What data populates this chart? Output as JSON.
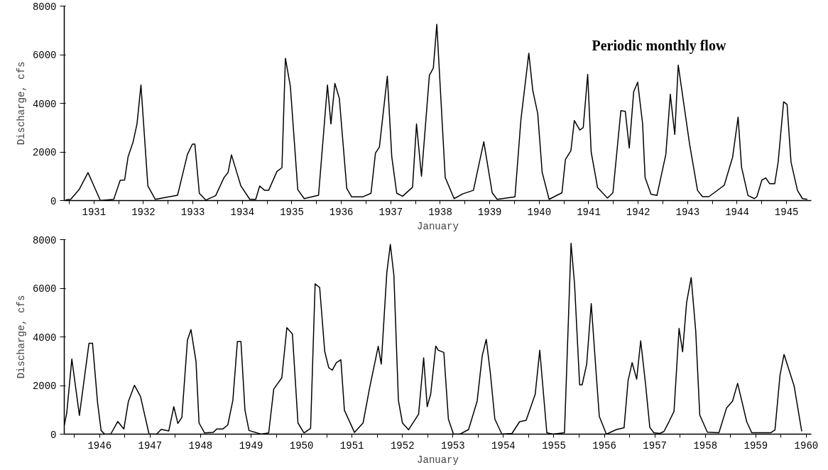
{
  "chart_data": [
    {
      "type": "line",
      "title": "Periodic monthly flow",
      "xlabel": "January",
      "ylabel": "Discharge, cfs",
      "marker": "none",
      "line_style": "solid",
      "xlim": [
        1930.9,
        1946.0
      ],
      "ylim": [
        0,
        8000
      ],
      "yticks": [
        0,
        2000,
        4000,
        6000,
        8000
      ],
      "xticks": [
        {
          "value": 1931,
          "label": null
        },
        {
          "value": 1931.5,
          "label": "1931"
        },
        {
          "value": 1932,
          "label": null
        },
        {
          "value": 1932.5,
          "label": "1932"
        },
        {
          "value": 1933,
          "label": null
        },
        {
          "value": 1933.5,
          "label": "1933"
        },
        {
          "value": 1934,
          "label": null
        },
        {
          "value": 1934.5,
          "label": "1934"
        },
        {
          "value": 1935,
          "label": null
        },
        {
          "value": 1935.5,
          "label": "1935"
        },
        {
          "value": 1936,
          "label": null
        },
        {
          "value": 1936.5,
          "label": "1936"
        },
        {
          "value": 1937,
          "label": null
        },
        {
          "value": 1937.5,
          "label": "1937"
        },
        {
          "value": 1938,
          "label": null
        },
        {
          "value": 1938.5,
          "label": "1938"
        },
        {
          "value": 1939,
          "label": null
        },
        {
          "value": 1939.5,
          "label": "1939"
        },
        {
          "value": 1940,
          "label": null
        },
        {
          "value": 1940.5,
          "label": "1940"
        },
        {
          "value": 1941,
          "label": null
        },
        {
          "value": 1941.5,
          "label": "1941"
        },
        {
          "value": 1942,
          "label": null
        },
        {
          "value": 1942.5,
          "label": "1942"
        },
        {
          "value": 1943,
          "label": null
        },
        {
          "value": 1943.5,
          "label": "1943"
        },
        {
          "value": 1944,
          "label": null
        },
        {
          "value": 1944.5,
          "label": "1944"
        },
        {
          "value": 1945,
          "label": null
        },
        {
          "value": 1945.5,
          "label": "1945"
        }
      ],
      "series": [
        {
          "color": "#000000",
          "x": [
            1930.93,
            1931.03,
            1931.2,
            1931.38,
            1931.5,
            1931.63,
            1931.9,
            1932.03,
            1932.12,
            1932.19,
            1932.29,
            1932.37,
            1932.45,
            1932.59,
            1932.74,
            1933.19,
            1933.39,
            1933.49,
            1933.54,
            1933.63,
            1933.76,
            1933.96,
            1934.13,
            1934.21,
            1934.28,
            1934.47,
            1934.65,
            1934.77,
            1934.85,
            1934.95,
            1935.03,
            1935.2,
            1935.3,
            1935.37,
            1935.47,
            1935.62,
            1935.75,
            1936.04,
            1936.22,
            1936.29,
            1936.37,
            1936.46,
            1936.61,
            1936.71,
            1936.93,
            1937.1,
            1937.19,
            1937.27,
            1937.43,
            1937.52,
            1937.62,
            1937.74,
            1937.94,
            1938.02,
            1938.12,
            1938.28,
            1938.36,
            1938.43,
            1938.6,
            1938.78,
            1938.96,
            1939.17,
            1939.38,
            1939.55,
            1939.65,
            1940.01,
            1940.13,
            1940.29,
            1940.37,
            1940.47,
            1940.56,
            1940.7,
            1940.96,
            1941.03,
            1941.14,
            1941.21,
            1941.32,
            1941.39,
            1941.48,
            1941.55,
            1941.68,
            1941.88,
            1941.99,
            1942.15,
            1942.24,
            1942.32,
            1942.41,
            1942.49,
            1942.59,
            1942.64,
            1942.76,
            1942.88,
            1943.06,
            1943.15,
            1943.24,
            1943.31,
            1943.54,
            1943.7,
            1943.8,
            1943.93,
            1944.24,
            1944.41,
            1944.52,
            1944.59,
            1944.72,
            1944.85,
            1944.9,
            1945.0,
            1945.08,
            1945.16,
            1945.26,
            1945.33,
            1945.44,
            1945.51,
            1945.59,
            1945.72,
            1945.82,
            1945.92
          ],
          "values": [
            30,
            50,
            450,
            1150,
            600,
            0,
            50,
            830,
            850,
            1800,
            2400,
            3150,
            4750,
            600,
            50,
            220,
            1900,
            2320,
            2320,
            300,
            20,
            200,
            950,
            1150,
            1880,
            600,
            50,
            50,
            600,
            420,
            420,
            1200,
            1350,
            5850,
            4700,
            450,
            80,
            220,
            4750,
            3150,
            4820,
            4200,
            500,
            150,
            150,
            300,
            1950,
            2200,
            5120,
            1800,
            300,
            180,
            550,
            3150,
            1000,
            5150,
            5450,
            7250,
            950,
            80,
            280,
            420,
            2420,
            320,
            50,
            150,
            3320,
            6060,
            4530,
            3580,
            1160,
            50,
            320,
            1690,
            2050,
            3290,
            2900,
            3000,
            5190,
            2000,
            530,
            100,
            320,
            3690,
            3670,
            2160,
            4480,
            4870,
            3160,
            950,
            260,
            210,
            1900,
            4370,
            2720,
            5570,
            2320,
            420,
            160,
            160,
            630,
            1790,
            3430,
            1370,
            210,
            80,
            160,
            840,
            930,
            690,
            690,
            1580,
            4060,
            3950,
            1580,
            420,
            80,
            50
          ]
        }
      ]
    },
    {
      "type": "line",
      "xlabel": "January",
      "ylabel": "Discharge, cfs",
      "marker": "none",
      "line_style": "solid",
      "xlim": [
        1945.8,
        1960.6
      ],
      "ylim": [
        0,
        8000
      ],
      "yticks": [
        0,
        2000,
        4000,
        6000,
        8000
      ],
      "xticks": [
        {
          "value": 1946,
          "label": null
        },
        {
          "value": 1946.5,
          "label": "1946"
        },
        {
          "value": 1947,
          "label": null
        },
        {
          "value": 1947.5,
          "label": "1947"
        },
        {
          "value": 1948,
          "label": null
        },
        {
          "value": 1948.5,
          "label": "1948"
        },
        {
          "value": 1949,
          "label": null
        },
        {
          "value": 1949.5,
          "label": "1949"
        },
        {
          "value": 1950,
          "label": null
        },
        {
          "value": 1950.5,
          "label": "1950"
        },
        {
          "value": 1951,
          "label": null
        },
        {
          "value": 1951.5,
          "label": "1951"
        },
        {
          "value": 1952,
          "label": null
        },
        {
          "value": 1952.5,
          "label": "1952"
        },
        {
          "value": 1953,
          "label": null
        },
        {
          "value": 1953.5,
          "label": "1953"
        },
        {
          "value": 1954,
          "label": null
        },
        {
          "value": 1954.5,
          "label": "1954"
        },
        {
          "value": 1955,
          "label": null
        },
        {
          "value": 1955.5,
          "label": "1955"
        },
        {
          "value": 1956,
          "label": null
        },
        {
          "value": 1956.5,
          "label": "1956"
        },
        {
          "value": 1957,
          "label": null
        },
        {
          "value": 1957.5,
          "label": "1957"
        },
        {
          "value": 1958,
          "label": null
        },
        {
          "value": 1958.5,
          "label": "1958"
        },
        {
          "value": 1959,
          "label": null
        },
        {
          "value": 1959.5,
          "label": "1959"
        },
        {
          "value": 1960,
          "label": null
        },
        {
          "value": 1960.5,
          "label": "1960"
        }
      ],
      "series": [
        {
          "color": "#000000",
          "x": [
            1945.8,
            1945.85,
            1945.95,
            1946.1,
            1946.29,
            1946.36,
            1946.46,
            1946.53,
            1946.6,
            1946.72,
            1946.86,
            1946.98,
            1947.07,
            1947.19,
            1947.31,
            1947.48,
            1947.63,
            1947.72,
            1947.87,
            1947.97,
            1948.05,
            1948.13,
            1948.24,
            1948.31,
            1948.41,
            1948.47,
            1948.58,
            1948.75,
            1948.82,
            1948.94,
            1949.04,
            1949.14,
            1949.23,
            1949.3,
            1949.38,
            1949.46,
            1949.7,
            1949.85,
            1949.95,
            1950.11,
            1950.21,
            1950.32,
            1950.43,
            1950.55,
            1950.68,
            1950.77,
            1950.86,
            1950.96,
            1951.04,
            1951.11,
            1951.19,
            1951.28,
            1951.35,
            1951.55,
            1951.72,
            1951.85,
            1952.02,
            1952.08,
            1952.19,
            1952.26,
            1952.33,
            1952.42,
            1952.5,
            1952.62,
            1952.82,
            1952.92,
            1952.99,
            1953.06,
            1953.16,
            1953.21,
            1953.32,
            1953.41,
            1953.51,
            1953.64,
            1953.81,
            1953.98,
            1954.08,
            1954.16,
            1954.24,
            1954.33,
            1954.47,
            1954.67,
            1954.82,
            1954.95,
            1955.13,
            1955.22,
            1955.36,
            1955.48,
            1955.71,
            1955.78,
            1955.84,
            1955.91,
            1956.01,
            1956.06,
            1956.15,
            1956.24,
            1956.34,
            1956.4,
            1956.54,
            1956.74,
            1956.89,
            1956.97,
            1957.05,
            1957.14,
            1957.22,
            1957.32,
            1957.4,
            1957.48,
            1957.6,
            1957.68,
            1957.78,
            1957.88,
            1957.98,
            1958.05,
            1958.13,
            1958.22,
            1958.31,
            1958.39,
            1958.54,
            1958.77,
            1958.92,
            1959.04,
            1959.14,
            1959.32,
            1959.42,
            1959.8,
            1959.88,
            1959.98,
            1960.06,
            1960.26,
            1960.41
          ],
          "values": [
            360,
            880,
            3090,
            770,
            3740,
            3740,
            1290,
            150,
            0,
            0,
            520,
            210,
            1340,
            2010,
            1550,
            0,
            0,
            200,
            130,
            1130,
            440,
            690,
            3860,
            4300,
            2990,
            460,
            50,
            70,
            210,
            210,
            380,
            1390,
            3810,
            3810,
            980,
            150,
            0,
            50,
            1850,
            2320,
            4380,
            4120,
            460,
            50,
            240,
            6180,
            6030,
            3400,
            2730,
            2630,
            2940,
            3060,
            980,
            70,
            460,
            1910,
            3610,
            2880,
            6640,
            7800,
            6540,
            1390,
            460,
            180,
            820,
            3140,
            1130,
            1650,
            3620,
            3450,
            3360,
            620,
            0,
            0,
            190,
            1360,
            3220,
            3900,
            2540,
            620,
            0,
            30,
            510,
            570,
            1640,
            3450,
            60,
            0,
            60,
            4240,
            7850,
            6160,
            2030,
            2030,
            2880,
            5370,
            2430,
            730,
            0,
            190,
            260,
            2200,
            2940,
            2260,
            3840,
            1980,
            280,
            60,
            30,
            110,
            510,
            940,
            4350,
            3390,
            5420,
            6440,
            4240,
            790,
            80,
            60,
            1070,
            1360,
            2090,
            510,
            60,
            60,
            170,
            2430,
            3280,
            1980,
            110
          ]
        }
      ]
    }
  ]
}
